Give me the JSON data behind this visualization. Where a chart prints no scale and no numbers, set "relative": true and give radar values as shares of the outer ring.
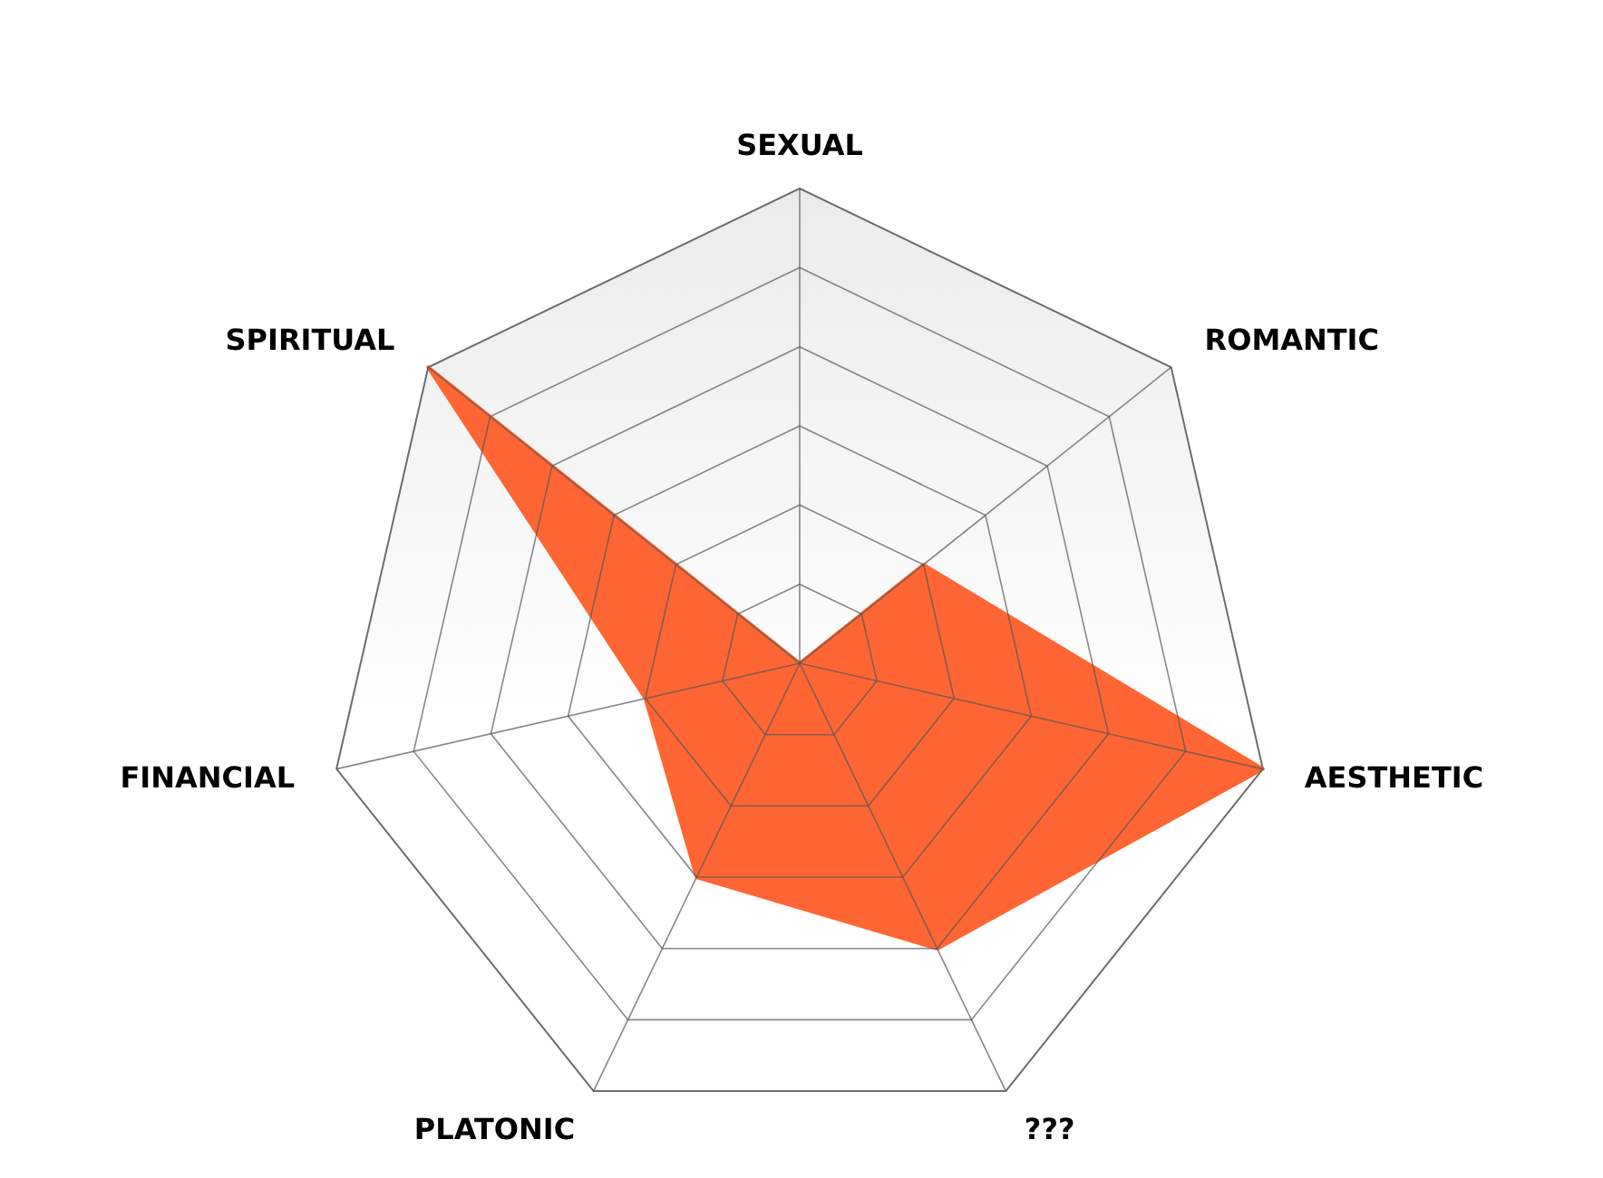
{
  "chart_data": {
    "type": "radar",
    "relative": true,
    "grid": true,
    "categories": [
      "SEXUAL",
      "ROMANTIC",
      "AESTHETIC",
      "???",
      "PLATONIC",
      "FINANCIAL",
      "SPIRITUAL"
    ],
    "series": [
      {
        "color": "#ff6633",
        "values": [
          0,
          0.333,
          1,
          0.667,
          0.5,
          0.333,
          1
        ]
      }
    ]
  }
}
